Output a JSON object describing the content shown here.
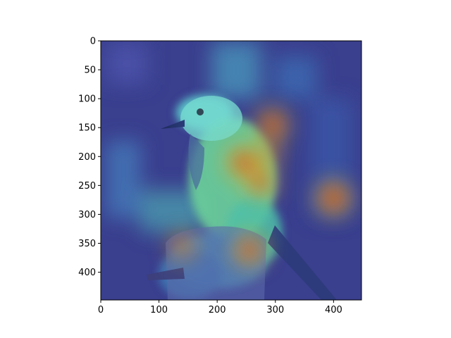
{
  "chart_data": {
    "type": "heatmap",
    "title": "",
    "xlabel": "",
    "ylabel": "",
    "xlim": [
      0,
      448
    ],
    "ylim": [
      448,
      0
    ],
    "xticks": [
      0,
      100,
      200,
      300,
      400
    ],
    "yticks": [
      0,
      50,
      100,
      150,
      200,
      250,
      300,
      350,
      400
    ],
    "colormap": "jet",
    "background_image": "bird-perched-on-stump",
    "grid": false,
    "hotspots": [
      {
        "x": 245,
        "y": 210,
        "intensity": 0.95
      },
      {
        "x": 275,
        "y": 245,
        "intensity": 0.8
      },
      {
        "x": 295,
        "y": 145,
        "intensity": 0.85
      },
      {
        "x": 400,
        "y": 272,
        "intensity": 0.95
      },
      {
        "x": 255,
        "y": 362,
        "intensity": 0.85
      },
      {
        "x": 140,
        "y": 355,
        "intensity": 0.6
      },
      {
        "x": 290,
        "y": 195,
        "intensity": 0.55
      }
    ]
  },
  "colors": {
    "low": "#30309a",
    "mid": "#3ccfcf",
    "high": "#d42020",
    "axis": "#000000"
  }
}
